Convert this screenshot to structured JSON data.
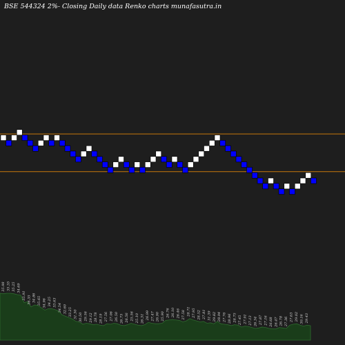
{
  "chart_data": {
    "type": "renko",
    "title": "BSE 544324  2%-  Closing Daily data  Renko  charts munafasutra.in",
    "brick_pct": 2,
    "colors": {
      "background": "#1e1e1e",
      "up_brick": "#ffffff",
      "down_brick": "#0000ff",
      "reference_line": "#c8780a",
      "volume_fill": "#1a3d1a",
      "volume_stroke": "#2e6a2e",
      "volume_text": "#d8d8d8"
    },
    "reference_line_levels": [
      8,
      1
    ],
    "bricks": [
      {
        "level": 8,
        "dir": "up"
      },
      {
        "level": 7,
        "dir": "down"
      },
      {
        "level": 8,
        "dir": "up"
      },
      {
        "level": 9,
        "dir": "up"
      },
      {
        "level": 8,
        "dir": "down"
      },
      {
        "level": 7,
        "dir": "down"
      },
      {
        "level": 6,
        "dir": "down"
      },
      {
        "level": 7,
        "dir": "up"
      },
      {
        "level": 8,
        "dir": "up"
      },
      {
        "level": 7,
        "dir": "down"
      },
      {
        "level": 8,
        "dir": "up"
      },
      {
        "level": 7,
        "dir": "down"
      },
      {
        "level": 6,
        "dir": "down"
      },
      {
        "level": 5,
        "dir": "down"
      },
      {
        "level": 4,
        "dir": "down"
      },
      {
        "level": 5,
        "dir": "up"
      },
      {
        "level": 6,
        "dir": "up"
      },
      {
        "level": 5,
        "dir": "down"
      },
      {
        "level": 4,
        "dir": "down"
      },
      {
        "level": 3,
        "dir": "down"
      },
      {
        "level": 2,
        "dir": "down"
      },
      {
        "level": 3,
        "dir": "up"
      },
      {
        "level": 4,
        "dir": "up"
      },
      {
        "level": 3,
        "dir": "down"
      },
      {
        "level": 2,
        "dir": "down"
      },
      {
        "level": 3,
        "dir": "up"
      },
      {
        "level": 2,
        "dir": "down"
      },
      {
        "level": 3,
        "dir": "up"
      },
      {
        "level": 4,
        "dir": "up"
      },
      {
        "level": 5,
        "dir": "up"
      },
      {
        "level": 4,
        "dir": "down"
      },
      {
        "level": 3,
        "dir": "down"
      },
      {
        "level": 4,
        "dir": "up"
      },
      {
        "level": 3,
        "dir": "down"
      },
      {
        "level": 2,
        "dir": "down"
      },
      {
        "level": 3,
        "dir": "up"
      },
      {
        "level": 4,
        "dir": "up"
      },
      {
        "level": 5,
        "dir": "up"
      },
      {
        "level": 6,
        "dir": "up"
      },
      {
        "level": 7,
        "dir": "up"
      },
      {
        "level": 8,
        "dir": "up"
      },
      {
        "level": 7,
        "dir": "down"
      },
      {
        "level": 6,
        "dir": "down"
      },
      {
        "level": 5,
        "dir": "down"
      },
      {
        "level": 4,
        "dir": "down"
      },
      {
        "level": 3,
        "dir": "down"
      },
      {
        "level": 2,
        "dir": "down"
      },
      {
        "level": 1,
        "dir": "down"
      },
      {
        "level": 0,
        "dir": "down"
      },
      {
        "level": -1,
        "dir": "down"
      },
      {
        "level": 0,
        "dir": "up"
      },
      {
        "level": -1,
        "dir": "down"
      },
      {
        "level": -2,
        "dir": "down"
      },
      {
        "level": -1,
        "dir": "up"
      },
      {
        "level": -2,
        "dir": "down"
      },
      {
        "level": -1,
        "dir": "up"
      },
      {
        "level": 0,
        "dir": "up"
      },
      {
        "level": 1,
        "dir": "up"
      },
      {
        "level": 0,
        "dir": "down"
      }
    ],
    "volume_labels": [
      "35.98",
      "35.35",
      "35.25",
      "34.69",
      "35.91",
      "36.35",
      "34.86",
      "35.65",
      "34.96",
      "34.25",
      "33.63",
      "34.54",
      "32.60",
      "33.25",
      "31.30",
      "30.50",
      "29.56",
      "29.12",
      "28.78",
      "28.19",
      "27.56",
      "27.06",
      "26.50",
      "26.75",
      "26.56",
      "25.56",
      "25.10",
      "26.31",
      "26.99",
      "27.47",
      "26.90",
      "25.90",
      "26.76",
      "26.10",
      "26.46",
      "27.58",
      "28.71",
      "27.95",
      "28.52",
      "27.81",
      "31.39",
      "29.82",
      "28.94",
      "27.76",
      "28.96",
      "28.75",
      "27.45",
      "27.91",
      "27.13",
      "26.34",
      "27.87",
      "27.16",
      "26.68",
      "26.47",
      "26.78",
      "27.36",
      "27.63",
      "29.02",
      "30.16",
      "29.43"
    ],
    "volume_values": [
      1.0,
      0.99,
      1.0,
      1.0,
      0.99,
      0.97,
      0.96,
      0.8,
      0.82,
      0.71,
      0.75,
      0.74,
      0.69,
      0.64,
      0.67,
      0.67,
      0.65,
      0.62,
      0.54,
      0.51,
      0.48,
      0.45,
      0.4,
      0.39,
      0.34,
      0.36,
      0.35,
      0.33,
      0.34,
      0.32,
      0.31,
      0.35,
      0.34,
      0.36,
      0.35,
      0.32,
      0.31,
      0.33,
      0.36,
      0.34,
      0.32,
      0.31,
      0.33,
      0.38,
      0.36,
      0.35,
      0.35,
      0.36,
      0.42,
      0.43,
      0.44,
      0.43,
      0.42,
      0.39,
      0.41,
      0.46,
      0.43,
      0.41,
      0.39,
      0.4,
      0.36,
      0.37,
      0.35,
      0.4,
      0.35,
      0.34,
      0.33,
      0.31,
      0.33,
      0.32,
      0.28,
      0.3,
      0.29,
      0.27,
      0.25,
      0.26,
      0.28,
      0.27,
      0.25,
      0.24,
      0.24,
      0.27,
      0.26,
      0.25,
      0.32,
      0.34,
      0.35,
      0.32,
      0.3,
      0.32,
      0.31
    ]
  }
}
